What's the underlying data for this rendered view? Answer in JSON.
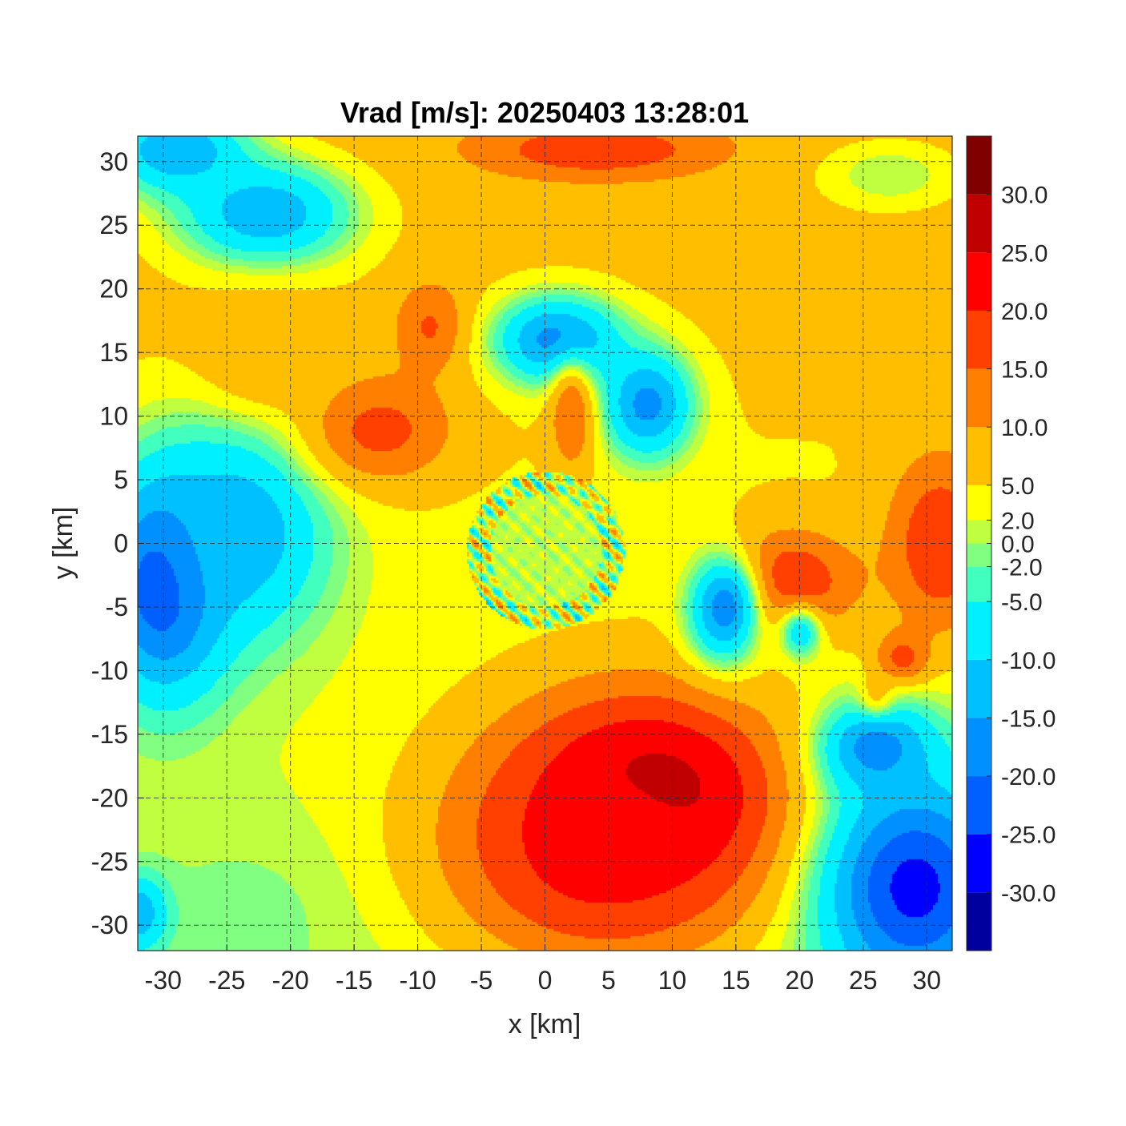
{
  "chart_data": {
    "type": "heatmap",
    "title": "Vrad [m/s]: 20250403 13:28:01",
    "xlabel": "x [km]",
    "ylabel": "y [km]",
    "xlim": [
      -32,
      32
    ],
    "ylim": [
      -32,
      32
    ],
    "xticks": [
      -30,
      -25,
      -20,
      -15,
      -10,
      -5,
      0,
      5,
      10,
      15,
      20,
      25,
      30
    ],
    "yticks": [
      -30,
      -25,
      -20,
      -15,
      -10,
      -5,
      0,
      5,
      10,
      15,
      20,
      25,
      30
    ],
    "grid": true,
    "grid_style": "dashed",
    "colorbar": {
      "placement": "right",
      "levels": [
        -35,
        -30,
        -25,
        -20,
        -15,
        -10,
        -5,
        -2,
        0,
        2,
        5,
        10,
        15,
        20,
        25,
        30,
        35
      ],
      "tick_values": [
        -30,
        -25,
        -20,
        -15,
        -10,
        -5,
        -2,
        0,
        2,
        5,
        10,
        15,
        20,
        25,
        30
      ],
      "tick_labels": [
        "-30.0",
        "-25.0",
        "-20.0",
        "-15.0",
        "-10.0",
        "-5.0",
        "-2.0",
        "0.0",
        "2.0",
        "5.0",
        "10.0",
        "15.0",
        "20.0",
        "25.0",
        "30.0"
      ],
      "colors": [
        "#00009f",
        "#0000ff",
        "#005fff",
        "#0090ff",
        "#00c0ff",
        "#00f0ff",
        "#40ffbf",
        "#80ff80",
        "#bfff40",
        "#ffff00",
        "#ffbf00",
        "#ff8000",
        "#ff4000",
        "#ff0000",
        "#c00000",
        "#800000"
      ]
    },
    "features": [
      {
        "kind": "min",
        "x": -30,
        "y": -3,
        "value": -27,
        "sx": 3.5,
        "sy": 6
      },
      {
        "kind": "min",
        "x": -29,
        "y": 31,
        "value": -15,
        "sx": 4,
        "sy": 2.5
      },
      {
        "kind": "min",
        "x": -22,
        "y": 26,
        "value": -14,
        "sx": 5,
        "sy": 3
      },
      {
        "kind": "min",
        "x": -24,
        "y": 1,
        "value": -14,
        "sx": 5,
        "sy": 6
      },
      {
        "kind": "max",
        "x": -13,
        "y": 9,
        "value": 17,
        "sx": 4,
        "sy": 3
      },
      {
        "kind": "max",
        "x": -9,
        "y": 17,
        "value": 16,
        "sx": 2,
        "sy": 2.5
      },
      {
        "kind": "max",
        "x": -22,
        "y": 15,
        "value": 10,
        "sx": 3.5,
        "sy": 3
      },
      {
        "kind": "max",
        "x": -23,
        "y": -29,
        "value": -1,
        "sx": 6,
        "sy": 4
      },
      {
        "kind": "min",
        "x": 1,
        "y": 16,
        "value": -18,
        "sx": 3.5,
        "sy": 2.5
      },
      {
        "kind": "min",
        "x": 8,
        "y": 11,
        "value": -17,
        "sx": 2.5,
        "sy": 3
      },
      {
        "kind": "max",
        "x": 2,
        "y": 10,
        "value": 15,
        "sx": 1.2,
        "sy": 3
      },
      {
        "kind": "max",
        "x": 4,
        "y": 31,
        "value": 20,
        "sx": 6,
        "sy": 1.5
      },
      {
        "kind": "max",
        "x": 8,
        "y": -20,
        "value": 34,
        "sx": 7,
        "sy": 5.5
      },
      {
        "kind": "max",
        "x": 4,
        "y": -24,
        "value": 22,
        "sx": 9,
        "sy": 7
      },
      {
        "kind": "max",
        "x": 19,
        "y": -3,
        "value": 20,
        "sx": 4,
        "sy": 3
      },
      {
        "kind": "max",
        "x": 31,
        "y": 0,
        "value": 20,
        "sx": 3,
        "sy": 5
      },
      {
        "kind": "max",
        "x": 28,
        "y": 20,
        "value": 10,
        "sx": 4,
        "sy": 3
      },
      {
        "kind": "max",
        "x": 28,
        "y": -9,
        "value": 18,
        "sx": 1.5,
        "sy": 1.5
      },
      {
        "kind": "max",
        "x": 26,
        "y": -13,
        "value": 20,
        "sx": 1,
        "sy": 1.5
      },
      {
        "kind": "min",
        "x": 14,
        "y": -5,
        "value": -18,
        "sx": 2,
        "sy": 3
      },
      {
        "kind": "min",
        "x": 29,
        "y": -27,
        "value": -27,
        "sx": 5,
        "sy": 6
      },
      {
        "kind": "min",
        "x": 26,
        "y": -16,
        "value": -18,
        "sx": 3,
        "sy": 2.5
      },
      {
        "kind": "max",
        "x": 27,
        "y": 29,
        "value": 0,
        "sx": 4,
        "sy": 2
      },
      {
        "kind": "min",
        "x": -32,
        "y": -29,
        "value": -14,
        "sx": 1.5,
        "sy": 2
      },
      {
        "kind": "min",
        "x": 20,
        "y": -7,
        "value": -8,
        "sx": 1.2,
        "sy": 1.5
      }
    ]
  }
}
